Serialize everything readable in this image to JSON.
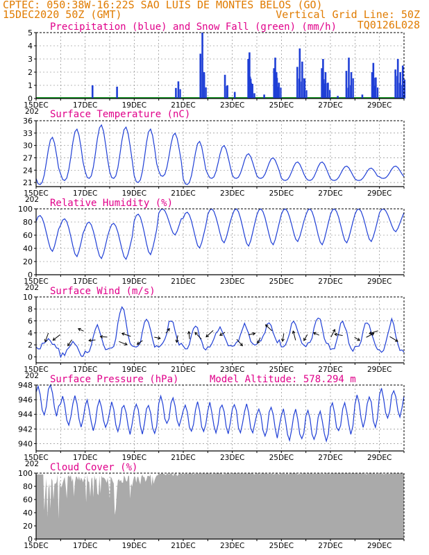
{
  "header": {
    "line1": "CPTEC:  050:38W-16:22S  SAO LUIS DE MONTES BELOS (GO)",
    "line2_left": "15DEC2020 50Z (GMT)",
    "line2_right": "Vertical Grid Line: 50Z",
    "line3_right": "TQ0126L028"
  },
  "colors": {
    "header": "#e07b00",
    "title": "#e0008a",
    "line": "#1f3fd6",
    "snow": "#1a9e2a",
    "cloud": "#aaaaaa"
  },
  "x_labels": [
    "15DEC",
    "17DEC",
    "19DEC",
    "21DEC",
    "23DEC",
    "25DEC",
    "27DEC",
    "29DEC"
  ],
  "x_year_fragment": "202",
  "chart_data": [
    {
      "id": "precip",
      "type": "bar",
      "title": "Precipitation (blue) and Snow Fall (green) (mm/h)",
      "ylim": [
        0,
        5
      ],
      "yticks": [
        0,
        1,
        2,
        3,
        4,
        5
      ],
      "days": 15,
      "events": [
        {
          "day": 2.3,
          "value": 1.0
        },
        {
          "day": 3.3,
          "value": 0.9
        },
        {
          "day": 5.7,
          "value": 0.8
        },
        {
          "day": 5.8,
          "value": 1.3
        },
        {
          "day": 6.7,
          "value": 3.4
        },
        {
          "day": 6.78,
          "value": 5.0
        },
        {
          "day": 6.85,
          "value": 2.0
        },
        {
          "day": 7.7,
          "value": 1.8
        },
        {
          "day": 7.8,
          "value": 1.0
        },
        {
          "day": 8.1,
          "value": 0.5
        },
        {
          "day": 8.65,
          "value": 3.0
        },
        {
          "day": 8.7,
          "value": 3.5
        },
        {
          "day": 8.75,
          "value": 1.5
        },
        {
          "day": 8.9,
          "value": 0.4
        },
        {
          "day": 9.3,
          "value": 0.3
        },
        {
          "day": 9.7,
          "value": 2.3
        },
        {
          "day": 9.75,
          "value": 3.1
        },
        {
          "day": 9.8,
          "value": 2.0
        },
        {
          "day": 9.9,
          "value": 1.2
        },
        {
          "day": 10.65,
          "value": 2.4
        },
        {
          "day": 10.75,
          "value": 3.8
        },
        {
          "day": 10.85,
          "value": 2.8
        },
        {
          "day": 10.95,
          "value": 1.5
        },
        {
          "day": 11.65,
          "value": 2.3
        },
        {
          "day": 11.7,
          "value": 3.0
        },
        {
          "day": 11.8,
          "value": 2.0
        },
        {
          "day": 11.9,
          "value": 1.2
        },
        {
          "day": 12.3,
          "value": 0.2
        },
        {
          "day": 12.65,
          "value": 2.1
        },
        {
          "day": 12.75,
          "value": 3.1
        },
        {
          "day": 12.85,
          "value": 2.0
        },
        {
          "day": 13.3,
          "value": 0.3
        },
        {
          "day": 13.7,
          "value": 2.0
        },
        {
          "day": 13.75,
          "value": 2.7
        },
        {
          "day": 13.85,
          "value": 1.6
        },
        {
          "day": 14.65,
          "value": 2.2
        },
        {
          "day": 14.75,
          "value": 3.0
        },
        {
          "day": 14.85,
          "value": 2.0
        },
        {
          "day": 14.95,
          "value": 2.5
        }
      ]
    },
    {
      "id": "temp",
      "type": "line",
      "title": "Surface Temperature (nC)",
      "ylim": [
        20,
        36
      ],
      "yticks": [
        21,
        24,
        27,
        30,
        33,
        36
      ],
      "daily_max": [
        32,
        34,
        35,
        34.5,
        34,
        33,
        31,
        30,
        28,
        27,
        26,
        26,
        25,
        24.5,
        25
      ],
      "daily_min": [
        20.5,
        21.5,
        22,
        22,
        21,
        22.5,
        20.5,
        22,
        22,
        22,
        21.5,
        21.5,
        21.5,
        21.5,
        22
      ]
    },
    {
      "id": "rh",
      "type": "line",
      "title": "Relative Humidity (%)",
      "ylim": [
        0,
        100
      ],
      "yticks": [
        0,
        20,
        40,
        60,
        80,
        100
      ],
      "daily_min": [
        35,
        27,
        24,
        23,
        30,
        60,
        40,
        48,
        43,
        45,
        50,
        45,
        48,
        50,
        65
      ],
      "daily_max": [
        90,
        85,
        80,
        78,
        92,
        100,
        95,
        100,
        100,
        100,
        100,
        100,
        100,
        100,
        100
      ]
    },
    {
      "id": "wind",
      "type": "line",
      "title": "Surface Wind (m/s)",
      "ylim": [
        -1,
        10
      ],
      "yticks": [
        0,
        2,
        4,
        6,
        8,
        10
      ],
      "daily_min": [
        1.5,
        0.3,
        1.0,
        1.5,
        1.5,
        2.0,
        1.5,
        2.0,
        2.0,
        2.5,
        2.0,
        2.0,
        1.0,
        1.5,
        1.0
      ],
      "daily_max": [
        3.0,
        2.5,
        5.0,
        8.5,
        6.5,
        6.0,
        5.0,
        5.0,
        5.5,
        5.5,
        6.0,
        6.5,
        6.0,
        6.0,
        6.0
      ],
      "arrow_count": 30
    },
    {
      "id": "pressure",
      "type": "line",
      "title": "Surface Pressure (hPa)",
      "annotation": "Model Altitude: 578.294 m",
      "ylim": [
        939,
        948
      ],
      "yticks": [
        940,
        942,
        944,
        946,
        948
      ],
      "daily_mean": [
        946,
        944.5,
        944,
        943.5,
        943.5,
        944.5,
        943.5,
        943.5,
        943.5,
        943,
        942.5,
        942.5,
        943.5,
        944.5,
        945.5
      ],
      "semi_diurnal_amplitude": 2.0
    },
    {
      "id": "cloud",
      "type": "area",
      "title": "Cloud Cover (%)",
      "ylim": [
        0,
        100
      ],
      "yticks": [
        0,
        20,
        40,
        60,
        80,
        100
      ],
      "daily_min": [
        30,
        45,
        55,
        35,
        80,
        95,
        97,
        98,
        98,
        98,
        98,
        98,
        98,
        98,
        98
      ],
      "daily_max": [
        98,
        98,
        98,
        98,
        98,
        100,
        100,
        100,
        100,
        100,
        100,
        100,
        100,
        100,
        100
      ]
    }
  ]
}
